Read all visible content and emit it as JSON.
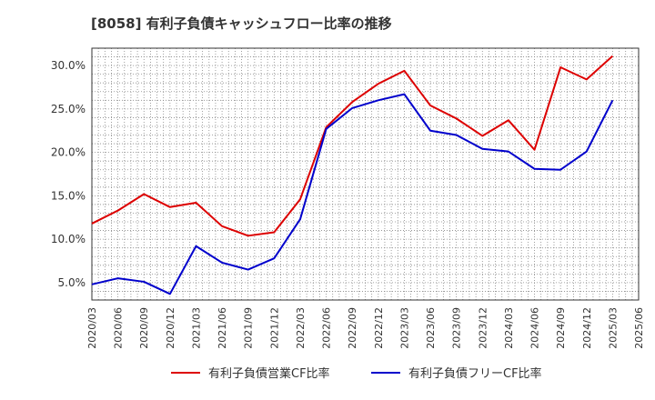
{
  "chart_data": {
    "type": "line",
    "title": "[8058]  有利子負債キャッシュフロー比率の推移",
    "xlabel": "",
    "ylabel": "",
    "ylim": [
      3.0,
      32.0
    ],
    "yticks": [
      5.0,
      10.0,
      15.0,
      20.0,
      25.0,
      30.0
    ],
    "ytick_labels": [
      "5.0%",
      "10.0%",
      "15.0%",
      "20.0%",
      "25.0%",
      "30.0%"
    ],
    "x": [
      "2020/03",
      "2020/06",
      "2020/09",
      "2020/12",
      "2021/03",
      "2021/06",
      "2021/09",
      "2021/12",
      "2022/03",
      "2022/06",
      "2022/09",
      "2022/12",
      "2023/03",
      "2023/06",
      "2023/09",
      "2023/12",
      "2024/03",
      "2024/06",
      "2024/09",
      "2024/12",
      "2025/03",
      "2025/06"
    ],
    "grid": true,
    "legend_position": "bottom",
    "series": [
      {
        "name": "有利子負債営業CF比率",
        "color": "#dd0000",
        "values": [
          11.8,
          13.3,
          15.2,
          13.7,
          14.2,
          11.5,
          10.4,
          10.8,
          14.6,
          22.9,
          25.8,
          27.9,
          29.4,
          25.4,
          23.9,
          21.9,
          23.7,
          20.3,
          29.8,
          28.4,
          31.1,
          null
        ]
      },
      {
        "name": "有利子負債フリーCF比率",
        "color": "#0000cc",
        "values": [
          4.8,
          5.5,
          5.1,
          3.7,
          9.2,
          7.3,
          6.5,
          7.8,
          12.3,
          22.7,
          25.1,
          26.0,
          26.7,
          22.5,
          22.0,
          20.4,
          20.1,
          18.1,
          18.0,
          20.1,
          26.0,
          null
        ]
      }
    ]
  }
}
